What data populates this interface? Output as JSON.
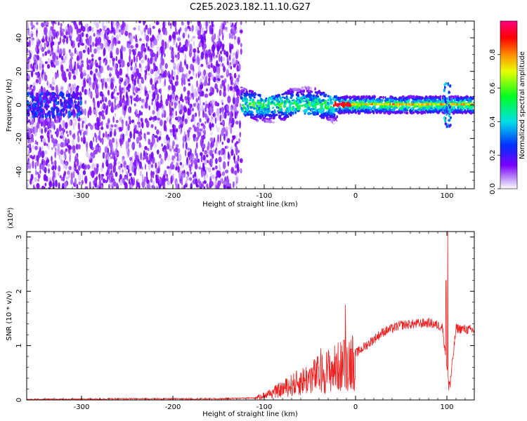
{
  "title": "C2E5.2023.182.11.10.G27",
  "chart_data": [
    {
      "type": "heatmap",
      "xlabel": "Height of straight line (km)",
      "ylabel": "Frequency (Hz)",
      "xlim": [
        -360,
        130
      ],
      "ylim": [
        -50,
        50
      ],
      "x_ticks": [
        -300,
        -200,
        -100,
        0,
        100
      ],
      "x_tick_labels": [
        "-300",
        "-200",
        "-100",
        "0",
        "100"
      ],
      "y_ticks": [
        -40,
        -20,
        0,
        20,
        40
      ],
      "y_tick_labels": [
        "-40",
        "-20",
        "0",
        "20",
        "40"
      ],
      "colorbar": {
        "label": "Normalized spectral amplitude",
        "range": [
          0,
          1
        ],
        "ticks": [
          0,
          0.2,
          0.4,
          0.6,
          0.8
        ],
        "tick_labels": [
          "0.0",
          "0.2",
          "0.4",
          "0.6",
          "0.8"
        ],
        "colormap": "rainbow"
      },
      "features": {
        "broadband_noise_x_range": [
          -360,
          -125
        ],
        "signal_band_x_range": [
          -125,
          130
        ],
        "signal_band_halfwidth_hz": 5,
        "peak_region_x_range": [
          -25,
          100
        ]
      },
      "grid": false
    },
    {
      "type": "line",
      "xlabel": "Height of straight line (km)",
      "ylabel": "SNR (10 * v/v)",
      "y_multiplier_label": "(x10⁴)",
      "xlim": [
        -360,
        130
      ],
      "ylim": [
        0,
        3.1
      ],
      "x_ticks": [
        -300,
        -200,
        -100,
        0,
        100
      ],
      "x_tick_labels": [
        "-300",
        "-200",
        "-100",
        "0",
        "100"
      ],
      "y_ticks": [
        0,
        1,
        2,
        3
      ],
      "y_tick_labels": [
        "0",
        "1",
        "2",
        "3"
      ],
      "color": "#ee2222",
      "series_profile": [
        {
          "x": -360,
          "y": 0.01
        },
        {
          "x": -250,
          "y": 0.02
        },
        {
          "x": -150,
          "y": 0.02
        },
        {
          "x": -110,
          "y": 0.04
        },
        {
          "x": -90,
          "y": 0.15
        },
        {
          "x": -70,
          "y": 0.3
        },
        {
          "x": -50,
          "y": 0.45
        },
        {
          "x": -30,
          "y": 0.6
        },
        {
          "x": -15,
          "y": 0.7
        },
        {
          "x": 0,
          "y": 0.85
        },
        {
          "x": 15,
          "y": 1.05
        },
        {
          "x": 30,
          "y": 1.25
        },
        {
          "x": 50,
          "y": 1.38
        },
        {
          "x": 80,
          "y": 1.42
        },
        {
          "x": 95,
          "y": 1.35
        },
        {
          "x": 103,
          "y": 0.2
        },
        {
          "x": 110,
          "y": 1.32
        },
        {
          "x": 130,
          "y": 1.28
        }
      ],
      "peaks": [
        {
          "x": 101,
          "y": 3.1
        },
        {
          "x": 99,
          "y": 2.2
        },
        {
          "x": -11,
          "y": 1.75
        },
        {
          "x": -13,
          "y": 1.1
        },
        {
          "x": -38,
          "y": 0.95
        }
      ],
      "grid": false
    }
  ]
}
